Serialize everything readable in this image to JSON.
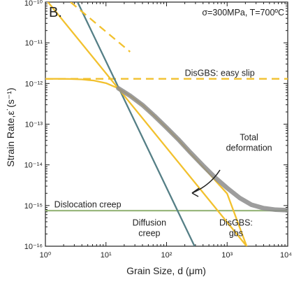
{
  "chart_data": {
    "type": "line",
    "panel_label": "B.",
    "condition_label": "σ=300MPa, T=700ºC",
    "xlabel": "Grain Size, d (μm)",
    "ylabel": "Strain Rate,ε˙(s⁻¹)",
    "x_scale": "log",
    "y_scale": "log",
    "xlim": [
      1,
      10000
    ],
    "ylim": [
      1e-16,
      1e-10
    ],
    "x_ticks": [
      {
        "value": 1,
        "label": "10⁰"
      },
      {
        "value": 10,
        "label": "10¹"
      },
      {
        "value": 100,
        "label": "10²"
      },
      {
        "value": 1000,
        "label": "10³"
      },
      {
        "value": 10000,
        "label": "10⁴"
      }
    ],
    "y_ticks": [
      {
        "value": 1e-16,
        "label": "10⁻¹⁶"
      },
      {
        "value": 1e-15,
        "label": "10⁻¹⁵"
      },
      {
        "value": 1e-14,
        "label": "10⁻¹⁴"
      },
      {
        "value": 1e-13,
        "label": "10⁻¹³"
      },
      {
        "value": 1e-12,
        "label": "10⁻¹²"
      },
      {
        "value": 1e-11,
        "label": "10⁻¹¹"
      },
      {
        "value": 1e-10,
        "label": "10⁻¹⁰"
      }
    ],
    "series": [
      {
        "key": "disgbs-easy-slip",
        "name": "DisGBS: easy slip",
        "color": "#f2c12e",
        "style": "dashed",
        "x": [
          1,
          10000
        ],
        "y": [
          1.3e-12,
          1.3e-12
        ]
      },
      {
        "key": "dislocation-creep",
        "name": "Dislocation creep",
        "color": "#9ab87f",
        "style": "solid",
        "x": [
          1,
          10000
        ],
        "y": [
          7.5e-16,
          7.5e-16
        ]
      },
      {
        "key": "diffusion-creep",
        "name": "Diffusion creep",
        "color": "#557f86",
        "style": "solid",
        "x": [
          3.4,
          290
        ],
        "y": [
          1e-10,
          1e-16
        ]
      },
      {
        "key": "disgbs-gbs",
        "name": "DisGBS: gbs",
        "color": "#f2c12e",
        "style": "solid",
        "x": [
          1,
          2100
        ],
        "y": [
          1.2e-10,
          1e-16
        ]
      },
      {
        "key": "disgbs-combined",
        "name": "",
        "color": "#f2c12e",
        "style": "solid",
        "x": [
          1,
          1.6,
          2.5,
          4,
          6.3,
          10,
          16,
          25,
          40,
          63,
          100,
          160,
          250,
          400,
          630,
          1000,
          2100
        ],
        "y": [
          1.3e-12,
          1.3e-12,
          1.29e-12,
          1.26e-12,
          1.18e-12,
          1.02e-12,
          7.6e-13,
          5e-13,
          2.96e-13,
          1.59e-13,
          8.1e-14,
          3.98e-14,
          1.9e-14,
          8.9e-15,
          4.2e-15,
          1.96e-15,
          1e-16
        ]
      },
      {
        "key": "disgbs-gbs-dashed",
        "name": "",
        "color": "#f2c12e",
        "style": "dashed",
        "x": [
          2.6,
          25
        ],
        "y": [
          1e-10,
          6e-12
        ]
      },
      {
        "key": "total-deformation",
        "name": "Total deformation",
        "color": "#8c8c8c",
        "style": "thick",
        "x": [
          16,
          25,
          40,
          63,
          100,
          160,
          250,
          400,
          630,
          1000,
          1600,
          2500,
          4000,
          6300,
          10000
        ],
        "y": [
          7.6e-13,
          5e-13,
          2.96e-13,
          1.6e-13,
          8.2e-14,
          4.07e-14,
          1.98e-14,
          9.6e-15,
          4.9e-15,
          2.7e-15,
          1.55e-15,
          1.05e-15,
          8.6e-16,
          7.9e-16,
          7.7e-16
        ]
      }
    ],
    "annotations": [
      {
        "key": "easy-slip",
        "lines": [
          "DisGBS: easy slip"
        ],
        "x": 200,
        "y": 1.55e-12,
        "anchor": "start"
      },
      {
        "key": "dislocation",
        "lines": [
          "Dislocation creep"
        ],
        "x": 1.4,
        "y": 9e-16,
        "anchor": "start"
      },
      {
        "key": "total",
        "lines": [
          "Total",
          "deformation"
        ],
        "x": 2300,
        "y": 4e-14,
        "anchor": "middle"
      },
      {
        "key": "diffusion",
        "lines": [
          "Diffusion",
          "creep"
        ],
        "x": 52,
        "y": 3.2e-16,
        "anchor": "middle"
      },
      {
        "key": "gbs",
        "lines": [
          "DisGBS:",
          "gbs"
        ],
        "x": 1400,
        "y": 3.2e-16,
        "anchor": "middle"
      }
    ],
    "grid": false,
    "legend": "none"
  }
}
